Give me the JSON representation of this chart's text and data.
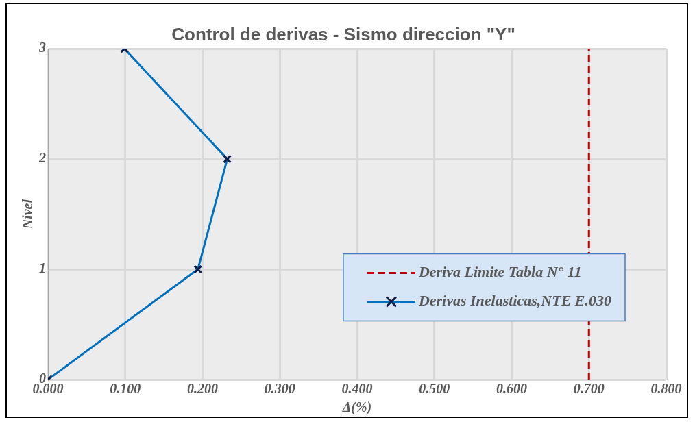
{
  "chart_data": {
    "type": "line",
    "title": "Control de derivas - Sismo direccion \"Y\"",
    "xlabel": "Δ(%)",
    "ylabel": "Nivel",
    "xlim": [
      0,
      0.8
    ],
    "xticks": [
      {
        "value": 0,
        "label": "0.000"
      },
      {
        "value": 0.1,
        "label": "0.100"
      },
      {
        "value": 0.2,
        "label": "0.200"
      },
      {
        "value": 0.3,
        "label": "0.300"
      },
      {
        "value": 0.4,
        "label": "0.400"
      },
      {
        "value": 0.5,
        "label": "0.500"
      },
      {
        "value": 0.6,
        "label": "0.600"
      },
      {
        "value": 0.7,
        "label": "0.700"
      },
      {
        "value": 0.8,
        "label": "0.800"
      }
    ],
    "ylim": [
      0,
      3
    ],
    "yticks": [
      0,
      1,
      2,
      3
    ],
    "grid": true,
    "legend": "right",
    "series": [
      {
        "name": "Deriva Limite Tabla N° 11",
        "color": "#c00000",
        "x": [
          0.7,
          0.7
        ],
        "values": [
          0,
          3
        ],
        "line_style": "dashed",
        "marker": "none"
      },
      {
        "name": "Derivas Inelasticas,NTE E.030",
        "color": "#0070c0",
        "x": [
          0,
          0.194,
          0.232,
          0.099
        ],
        "values": [
          0,
          1,
          2,
          3
        ],
        "line_style": "solid",
        "marker": "cross"
      }
    ]
  }
}
